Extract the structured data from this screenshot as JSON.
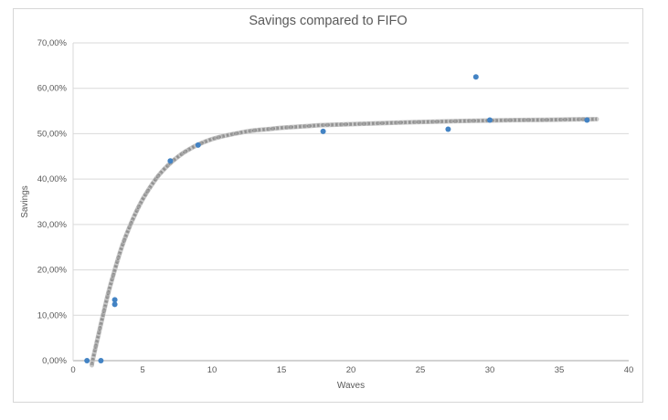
{
  "chart_data": {
    "type": "scatter",
    "title": "Savings compared to FIFO",
    "xlabel": "Waves",
    "ylabel": "Savings",
    "xlim": [
      0,
      40
    ],
    "ylim": [
      0,
      70
    ],
    "grid": true,
    "legend": "none",
    "x_ticks": [
      0,
      5,
      10,
      15,
      20,
      25,
      30,
      35,
      40
    ],
    "x_tick_labels": [
      "0",
      "5",
      "10",
      "15",
      "20",
      "25",
      "30",
      "35",
      "40"
    ],
    "y_ticks": [
      0,
      10,
      20,
      30,
      40,
      50,
      60,
      70
    ],
    "y_tick_labels": [
      "0,00%",
      "10,00%",
      "20,00%",
      "30,00%",
      "40,00%",
      "50,00%",
      "60,00%",
      "70,00%"
    ],
    "series": [
      {
        "name": "Savings",
        "marker_color": "#4383C4",
        "points": [
          [
            1,
            0
          ],
          [
            2,
            0
          ],
          [
            3,
            12.4
          ],
          [
            3,
            13.4
          ],
          [
            7,
            44
          ],
          [
            9,
            47.5
          ],
          [
            18,
            50.5
          ],
          [
            27,
            51
          ],
          [
            29,
            62.5
          ],
          [
            30,
            53
          ],
          [
            37,
            53
          ]
        ]
      }
    ],
    "trendline": {
      "style": "textured-sketch",
      "colors": [
        "#C9C9C9",
        "#A2A2A2",
        "#8D8D8D"
      ],
      "points": [
        [
          1.35,
          -1
        ],
        [
          1.4,
          0
        ],
        [
          1.7,
          4
        ],
        [
          2,
          8
        ],
        [
          2.5,
          14.5
        ],
        [
          3,
          20
        ],
        [
          3.5,
          25
        ],
        [
          4,
          29
        ],
        [
          4.5,
          32.5
        ],
        [
          5,
          35.5
        ],
        [
          5.5,
          38
        ],
        [
          6,
          40.2
        ],
        [
          6.5,
          42
        ],
        [
          7,
          43.5
        ],
        [
          7.5,
          44.8
        ],
        [
          8,
          45.9
        ],
        [
          8.5,
          46.8
        ],
        [
          9,
          47.6
        ],
        [
          10,
          48.8
        ],
        [
          11,
          49.6
        ],
        [
          12,
          50.2
        ],
        [
          13,
          50.7
        ],
        [
          14,
          51
        ],
        [
          15,
          51.3
        ],
        [
          16,
          51.5
        ],
        [
          17,
          51.7
        ],
        [
          18,
          51.9
        ],
        [
          20,
          52.1
        ],
        [
          22,
          52.3
        ],
        [
          24,
          52.5
        ],
        [
          26,
          52.65
        ],
        [
          28,
          52.8
        ],
        [
          30,
          52.9
        ],
        [
          32,
          53
        ],
        [
          34,
          53.05
        ],
        [
          36,
          53.15
        ],
        [
          37.7,
          53.2
        ]
      ]
    }
  },
  "colors": {
    "gridline": "#D9D9D9",
    "axis_line": "#A6A6A6",
    "tick_text": "#595959",
    "title_text": "#595959",
    "background": "#FFFFFF",
    "chart_border": "#D7D7D7"
  }
}
